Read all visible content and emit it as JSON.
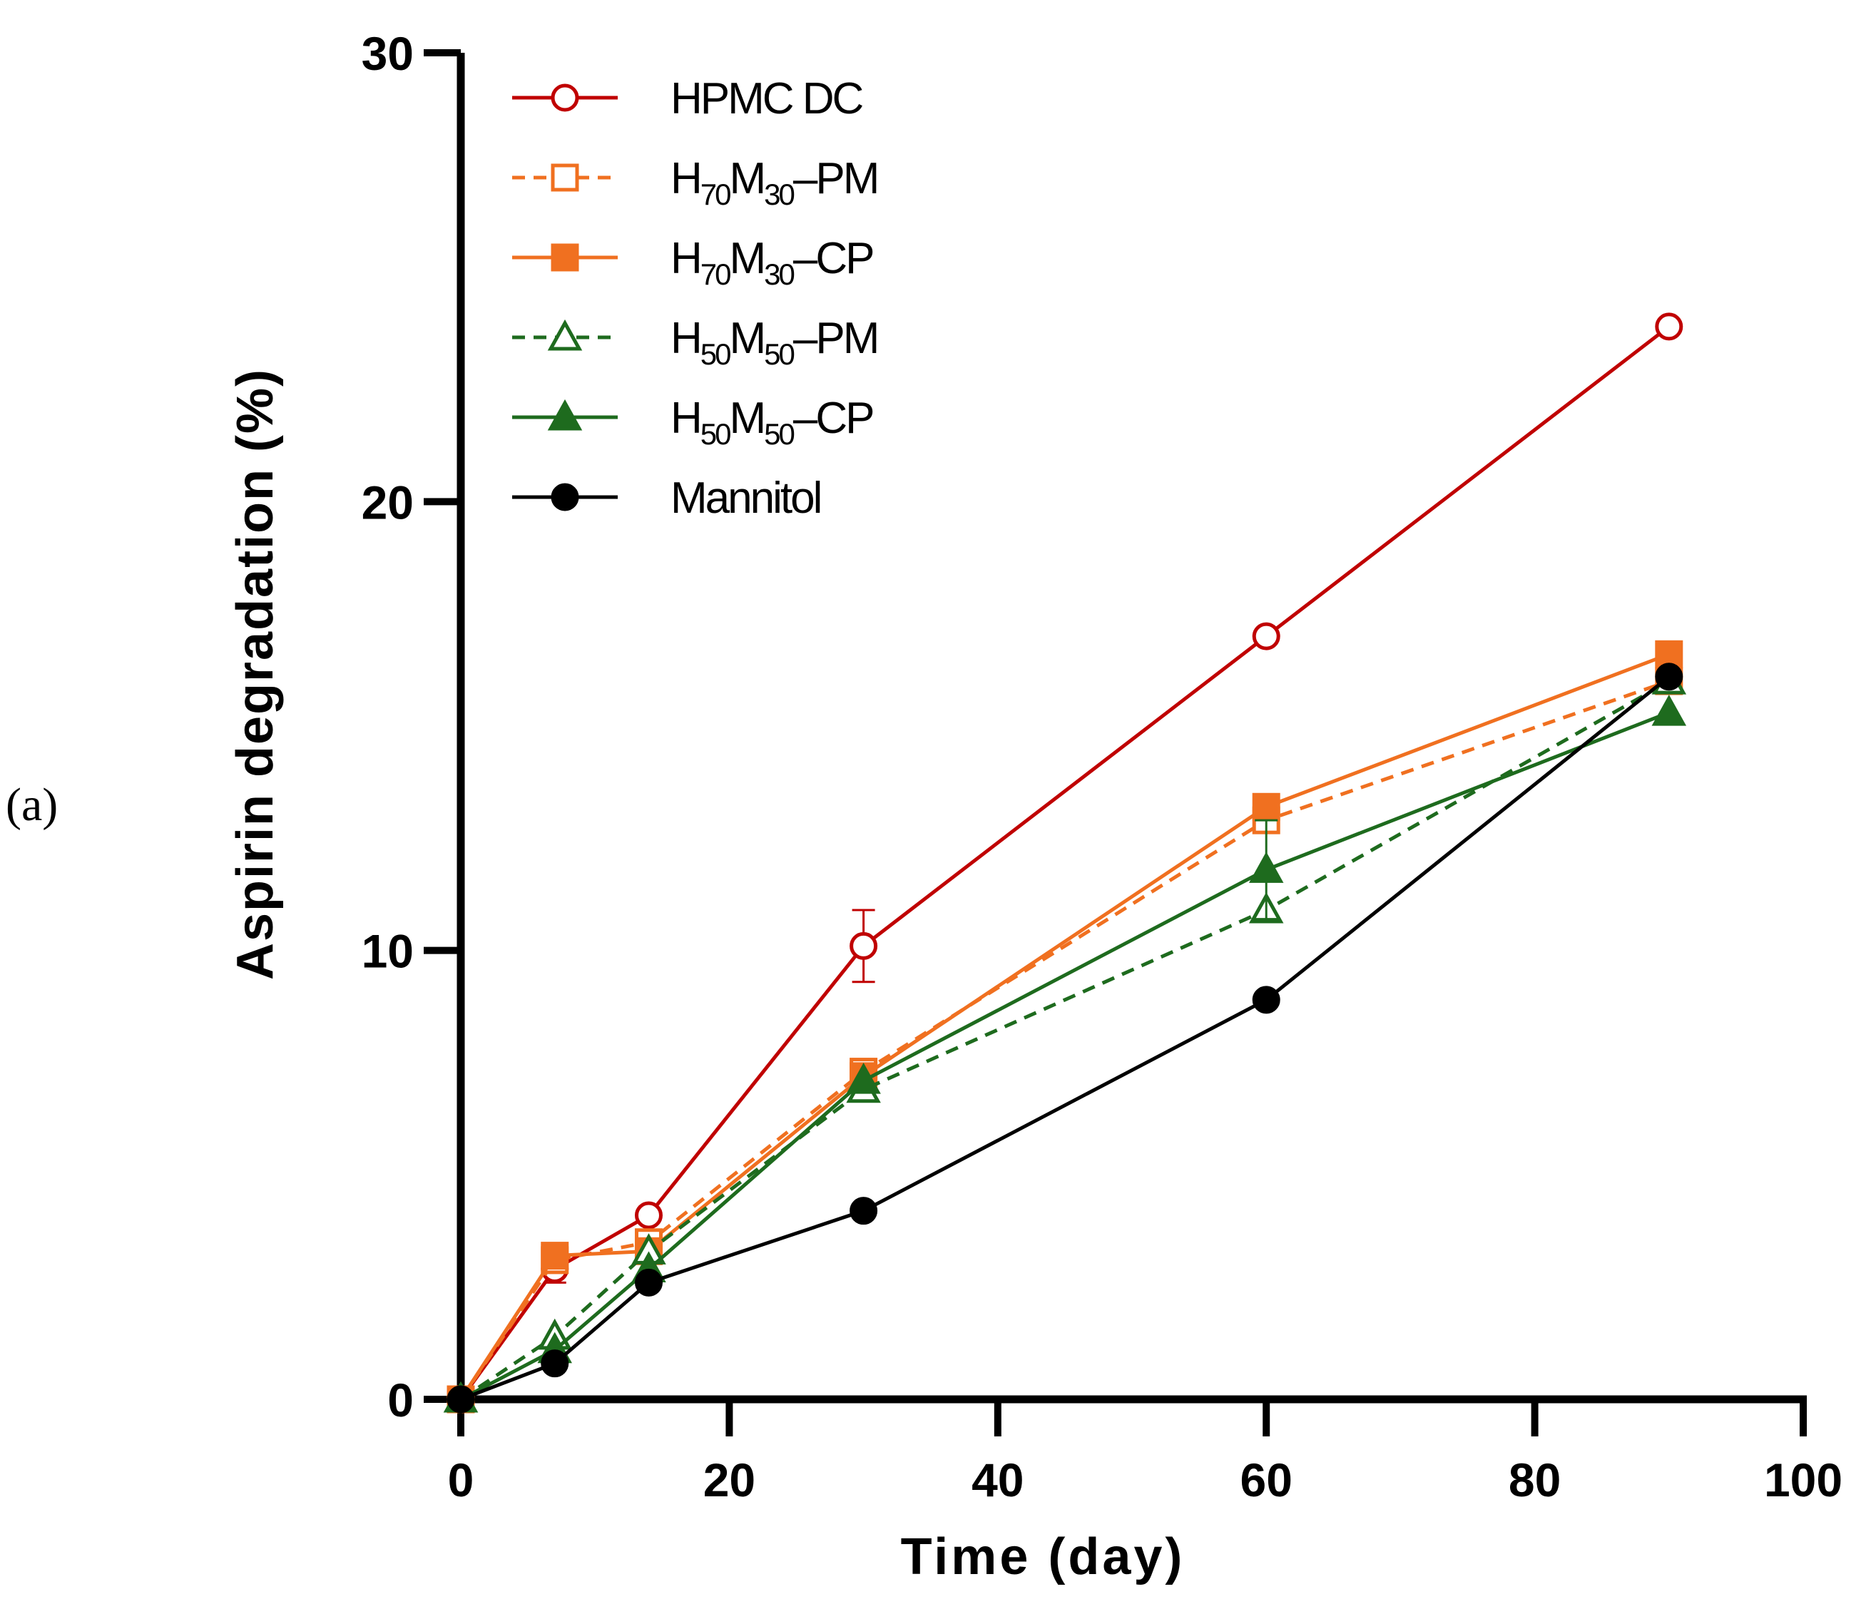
{
  "panel_label": "(a)",
  "chart_data": {
    "type": "line",
    "title": "",
    "xlabel": "Time (day)",
    "ylabel": "Aspirin degradation (%)",
    "xlim": [
      0,
      100
    ],
    "ylim": [
      0,
      30
    ],
    "xticks": [
      0,
      20,
      40,
      60,
      80,
      100
    ],
    "yticks": [
      0,
      10,
      20,
      30
    ],
    "x": [
      0,
      7,
      14,
      30,
      60,
      90
    ],
    "legend_position": "top-left",
    "series": [
      {
        "name": "HPMC DC",
        "legend": {
          "base1": "HPMC DC",
          "sub1": "",
          "base2": "",
          "sub2": "",
          "tail": ""
        },
        "color": "#c00000",
        "dash": "solid",
        "marker": "circle",
        "filled": false,
        "values": [
          0,
          2.9,
          4.1,
          10.1,
          17.0,
          23.9
        ],
        "errors": [
          0,
          0.3,
          0,
          0.8,
          0,
          0
        ]
      },
      {
        "name": "H70M30–PM",
        "legend": {
          "base1": "H",
          "sub1": "70",
          "base2": "M",
          "sub2": "30",
          "tail": "–PM"
        },
        "color": "#f07020",
        "dash": "dashed",
        "marker": "square",
        "filled": false,
        "values": [
          0,
          3.1,
          3.5,
          7.3,
          12.9,
          16.0
        ],
        "errors": [
          0,
          0,
          0,
          0,
          0,
          0.2
        ]
      },
      {
        "name": "H70M30–CP",
        "legend": {
          "base1": "H",
          "sub1": "70",
          "base2": "M",
          "sub2": "30",
          "tail": "–CP"
        },
        "color": "#f07020",
        "dash": "solid",
        "marker": "square",
        "filled": true,
        "values": [
          0,
          3.2,
          3.3,
          7.2,
          13.2,
          16.6
        ],
        "errors": [
          0,
          0,
          0,
          0,
          0,
          0
        ]
      },
      {
        "name": "H50M50–PM",
        "legend": {
          "base1": "H",
          "sub1": "50",
          "base2": "M",
          "sub2": "50",
          "tail": "–PM"
        },
        "color": "#1e6b1e",
        "dash": "dashed",
        "marker": "triangle",
        "filled": false,
        "values": [
          0,
          1.4,
          3.3,
          6.9,
          10.9,
          16.0
        ],
        "errors": [
          0,
          0,
          0,
          0,
          0,
          0
        ]
      },
      {
        "name": "H50M50–CP",
        "legend": {
          "base1": "H",
          "sub1": "50",
          "base2": "M",
          "sub2": "50",
          "tail": "–CP"
        },
        "color": "#1e6b1e",
        "dash": "solid",
        "marker": "triangle",
        "filled": true,
        "values": [
          0,
          1.1,
          2.9,
          7.1,
          11.8,
          15.3
        ],
        "errors": [
          0,
          0,
          0,
          0,
          1.1,
          0
        ]
      },
      {
        "name": "Mannitol",
        "legend": {
          "base1": "Mannitol",
          "sub1": "",
          "base2": "",
          "sub2": "",
          "tail": ""
        },
        "color": "#000000",
        "dash": "solid",
        "marker": "circle",
        "filled": true,
        "values": [
          0,
          0.8,
          2.6,
          4.2,
          8.9,
          16.1
        ],
        "errors": [
          0,
          0,
          0,
          0,
          0,
          0
        ]
      }
    ]
  }
}
